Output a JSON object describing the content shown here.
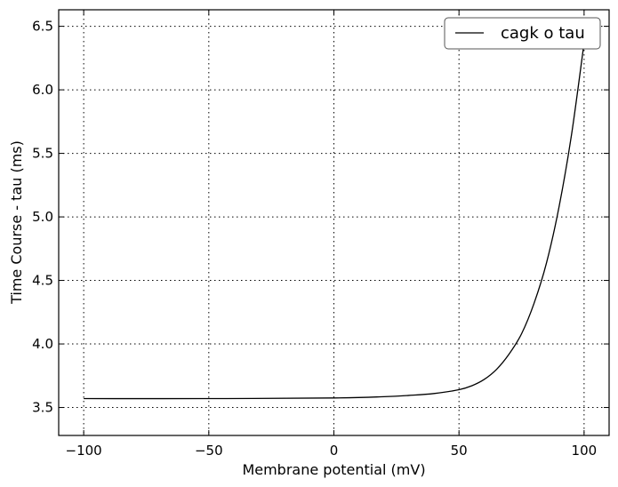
{
  "chart_data": {
    "type": "line",
    "xlabel": "Membrane potential (mV)",
    "ylabel": "Time Course - tau (ms)",
    "xlim": [
      -110,
      110
    ],
    "ylim": [
      3.28,
      6.63
    ],
    "xticks": [
      -100,
      -50,
      0,
      50,
      100
    ],
    "xtick_labels": [
      "−100",
      "−50",
      "0",
      "50",
      "100"
    ],
    "yticks": [
      3.5,
      4.0,
      4.5,
      5.0,
      5.5,
      6.0,
      6.5
    ],
    "ytick_labels": [
      "3.5",
      "4.0",
      "4.5",
      "5.0",
      "5.5",
      "6.0",
      "6.5"
    ],
    "grid": true,
    "legend": {
      "position": "top-right",
      "entries": [
        "cagk o tau"
      ]
    },
    "series": [
      {
        "name": "cagk o tau",
        "color": "#000000",
        "x": [
          -100,
          -50,
          0,
          20,
          30,
          40,
          50,
          55,
          60,
          65,
          70,
          75,
          80,
          85,
          90,
          95,
          100
        ],
        "y": [
          3.57,
          3.57,
          3.575,
          3.585,
          3.595,
          3.61,
          3.64,
          3.67,
          3.72,
          3.8,
          3.92,
          4.08,
          4.32,
          4.64,
          5.08,
          5.65,
          6.37
        ]
      }
    ]
  }
}
